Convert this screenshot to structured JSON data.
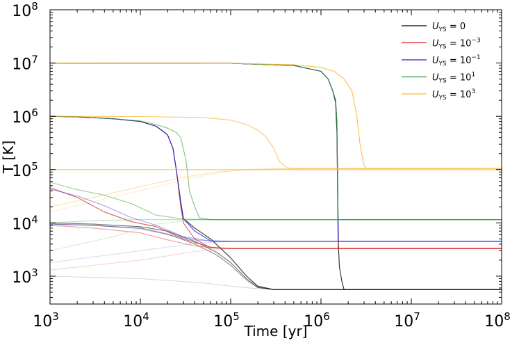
{
  "chart_data": {
    "type": "line",
    "xlabel": "Time [yr]",
    "ylabel": "T [K]",
    "x_scale": "log",
    "y_scale": "log",
    "xlim": [
      1000,
      100000000
    ],
    "ylim": [
      300,
      100000000
    ],
    "x_ticks": [
      1000,
      10000,
      100000,
      1000000,
      10000000,
      100000000
    ],
    "x_tick_labels": [
      {
        "base": "10",
        "exp": "3"
      },
      {
        "base": "10",
        "exp": "4"
      },
      {
        "base": "10",
        "exp": "5"
      },
      {
        "base": "10",
        "exp": "6"
      },
      {
        "base": "10",
        "exp": "7"
      },
      {
        "base": "10",
        "exp": "8"
      }
    ],
    "y_ticks": [
      1000,
      10000,
      100000,
      1000000,
      10000000,
      100000000
    ],
    "y_tick_labels": [
      {
        "base": "10",
        "exp": "3"
      },
      {
        "base": "10",
        "exp": "4"
      },
      {
        "base": "10",
        "exp": "5"
      },
      {
        "base": "10",
        "exp": "6"
      },
      {
        "base": "10",
        "exp": "7"
      },
      {
        "base": "10",
        "exp": "8"
      }
    ],
    "legend_position": "top-right",
    "legend": [
      {
        "key": "u0",
        "var": "U",
        "sub": "YS",
        "eq": " = ",
        "val": "0",
        "exp": "",
        "color": "#000000"
      },
      {
        "key": "um3",
        "var": "U",
        "sub": "YS",
        "eq": " = ",
        "val": "10",
        "exp": "−3",
        "color": "#d62728"
      },
      {
        "key": "um1",
        "var": "U",
        "sub": "YS",
        "eq": " = ",
        "val": "10",
        "exp": "−1",
        "color": "#1f1fd6"
      },
      {
        "key": "u1",
        "var": "U",
        "sub": "YS",
        "eq": " = ",
        "val": "10",
        "exp": "1",
        "color": "#2ca02c"
      },
      {
        "key": "u3",
        "var": "U",
        "sub": "YS",
        "eq": " = ",
        "val": "10",
        "exp": "3",
        "color": "#ffb732"
      }
    ],
    "series": [
      {
        "group": "u0",
        "opacity": 0.85,
        "points": [
          [
            1000,
            10000000
          ],
          [
            100000,
            9900000
          ],
          [
            500000,
            9000000
          ],
          [
            1000000,
            7000000
          ],
          [
            1200000,
            5000000
          ],
          [
            1350000,
            3000000
          ],
          [
            1450000,
            1800000
          ],
          [
            1500000,
            500000
          ],
          [
            1550000,
            5000
          ],
          [
            1600000,
            1500
          ],
          [
            1700000,
            800
          ],
          [
            1800000,
            560
          ],
          [
            100000000,
            560
          ]
        ]
      },
      {
        "group": "um3",
        "opacity": 0.85,
        "points": [
          [
            1000,
            10000000
          ],
          [
            100000,
            9900000
          ],
          [
            500000,
            9000000
          ],
          [
            1000000,
            7000000
          ],
          [
            1200000,
            5000000
          ],
          [
            1350000,
            3000000
          ],
          [
            1450000,
            2000000
          ],
          [
            1500000,
            800000
          ],
          [
            1550000,
            3300
          ],
          [
            100000000,
            3300
          ]
        ]
      },
      {
        "group": "um1",
        "opacity": 0.85,
        "points": [
          [
            1000,
            10000000
          ],
          [
            100000,
            9900000
          ],
          [
            500000,
            9000000
          ],
          [
            1000000,
            7000000
          ],
          [
            1200000,
            5000000
          ],
          [
            1350000,
            3000000
          ],
          [
            1450000,
            2000000
          ],
          [
            1500000,
            800000
          ],
          [
            1560000,
            4500
          ],
          [
            100000000,
            4500
          ]
        ]
      },
      {
        "group": "u1",
        "opacity": 0.85,
        "points": [
          [
            1000,
            10000000
          ],
          [
            100000,
            9900000
          ],
          [
            500000,
            9000000
          ],
          [
            1000000,
            7000000
          ],
          [
            1200000,
            5000000
          ],
          [
            1350000,
            3000000
          ],
          [
            1450000,
            2000000
          ],
          [
            1500000,
            800000
          ],
          [
            1550000,
            11500
          ],
          [
            100000000,
            11500
          ]
        ]
      },
      {
        "group": "u3",
        "opacity": 0.9,
        "points": [
          [
            1000,
            10000000
          ],
          [
            100000,
            9900000
          ],
          [
            500000,
            9300000
          ],
          [
            1000000,
            8300000
          ],
          [
            1400000,
            7000000
          ],
          [
            1800000,
            5000000
          ],
          [
            2200000,
            3000000
          ],
          [
            2500000,
            1000000
          ],
          [
            2700000,
            300000
          ],
          [
            3000000,
            120000
          ],
          [
            3200000,
            105000
          ],
          [
            100000000,
            105000
          ]
        ]
      },
      {
        "group": "u0",
        "opacity": 0.8,
        "points": [
          [
            1000,
            1000000
          ],
          [
            2000,
            980000
          ],
          [
            5000,
            900000
          ],
          [
            10000,
            800000
          ],
          [
            15000,
            650000
          ],
          [
            20000,
            450000
          ],
          [
            23000,
            250000
          ],
          [
            25000,
            100000
          ],
          [
            28000,
            25000
          ],
          [
            30000,
            12000
          ],
          [
            40000,
            8000
          ],
          [
            60000,
            5000
          ],
          [
            100000,
            2200
          ],
          [
            150000,
            1000
          ],
          [
            200000,
            650
          ],
          [
            300000,
            560
          ],
          [
            100000000,
            560
          ]
        ]
      },
      {
        "group": "um3",
        "opacity": 0.75,
        "points": [
          [
            1000,
            1000000
          ],
          [
            2000,
            980000
          ],
          [
            5000,
            900000
          ],
          [
            10000,
            800000
          ],
          [
            15000,
            650000
          ],
          [
            20000,
            450000
          ],
          [
            23000,
            250000
          ],
          [
            25000,
            100000
          ],
          [
            28000,
            20000
          ],
          [
            30000,
            10000
          ],
          [
            40000,
            5000
          ],
          [
            60000,
            3400
          ],
          [
            100000,
            3300
          ],
          [
            100000000,
            3300
          ]
        ]
      },
      {
        "group": "um1",
        "opacity": 0.85,
        "points": [
          [
            1000,
            1000000
          ],
          [
            2000,
            980000
          ],
          [
            5000,
            900000
          ],
          [
            10000,
            800000
          ],
          [
            15000,
            650000
          ],
          [
            20000,
            450000
          ],
          [
            23000,
            250000
          ],
          [
            25000,
            100000
          ],
          [
            28000,
            25000
          ],
          [
            30000,
            12000
          ],
          [
            40000,
            7000
          ],
          [
            60000,
            4600
          ],
          [
            100000,
            4500
          ],
          [
            100000000,
            4500
          ]
        ]
      },
      {
        "group": "u1",
        "opacity": 0.6,
        "points": [
          [
            1000,
            1000000
          ],
          [
            2000,
            980000
          ],
          [
            5000,
            900000
          ],
          [
            10000,
            820000
          ],
          [
            15000,
            700000
          ],
          [
            20000,
            600000
          ],
          [
            25000,
            500000
          ],
          [
            28000,
            400000
          ],
          [
            32000,
            150000
          ],
          [
            35000,
            40000
          ],
          [
            40000,
            20000
          ],
          [
            45000,
            12500
          ],
          [
            60000,
            11500
          ],
          [
            100000000,
            11500
          ]
        ]
      },
      {
        "group": "u3",
        "opacity": 0.75,
        "points": [
          [
            1000,
            1000000
          ],
          [
            10000,
            990000
          ],
          [
            50000,
            950000
          ],
          [
            100000,
            850000
          ],
          [
            150000,
            700000
          ],
          [
            200000,
            550000
          ],
          [
            250000,
            400000
          ],
          [
            300000,
            250000
          ],
          [
            350000,
            140000
          ],
          [
            420000,
            108000
          ],
          [
            500000,
            105000
          ],
          [
            100000000,
            105000
          ]
        ]
      },
      {
        "group": "u3",
        "opacity": 0.85,
        "points": [
          [
            1000,
            100000
          ],
          [
            100000000,
            100000
          ]
        ]
      },
      {
        "group": "u0",
        "opacity": 0.55,
        "points": [
          [
            1000,
            10000
          ],
          [
            3000,
            9500
          ],
          [
            10000,
            8500
          ],
          [
            20000,
            7000
          ],
          [
            40000,
            4500
          ],
          [
            70000,
            2800
          ],
          [
            100000,
            1800
          ],
          [
            150000,
            900
          ],
          [
            200000,
            620
          ],
          [
            300000,
            560
          ],
          [
            100000000,
            560
          ]
        ]
      },
      {
        "group": "u0",
        "opacity": 0.45,
        "points": [
          [
            1000,
            9500
          ],
          [
            3000,
            9000
          ],
          [
            10000,
            8000
          ],
          [
            20000,
            6200
          ],
          [
            40000,
            4000
          ],
          [
            70000,
            2500
          ],
          [
            100000,
            1600
          ],
          [
            150000,
            850
          ],
          [
            200000,
            610
          ],
          [
            300000,
            560
          ],
          [
            100000000,
            560
          ]
        ]
      },
      {
        "group": "u0",
        "opacity": 0.15,
        "points": [
          [
            1000,
            1000
          ],
          [
            10000,
            900
          ],
          [
            50000,
            750
          ],
          [
            100000,
            650
          ],
          [
            200000,
            580
          ],
          [
            400000,
            560
          ],
          [
            100000000,
            560
          ]
        ]
      },
      {
        "group": "um3",
        "opacity": 0.75,
        "points": [
          [
            1000,
            46000
          ],
          [
            2000,
            30000
          ],
          [
            4000,
            16000
          ],
          [
            8000,
            10500
          ],
          [
            15000,
            8500
          ],
          [
            30000,
            5000
          ],
          [
            60000,
            3500
          ],
          [
            100000,
            3300
          ],
          [
            100000000,
            3300
          ]
        ]
      },
      {
        "group": "um3",
        "opacity": 0.45,
        "points": [
          [
            1000,
            9000
          ],
          [
            3000,
            8000
          ],
          [
            10000,
            6500
          ],
          [
            20000,
            4800
          ],
          [
            40000,
            3700
          ],
          [
            70000,
            3350
          ],
          [
            100000,
            3300
          ],
          [
            100000000,
            3300
          ]
        ]
      },
      {
        "group": "um3",
        "opacity": 0.2,
        "points": [
          [
            1000,
            1300
          ],
          [
            10000,
            2000
          ],
          [
            40000,
            2900
          ],
          [
            100000,
            3300
          ],
          [
            100000000,
            3300
          ]
        ]
      },
      {
        "group": "um1",
        "opacity": 0.4,
        "points": [
          [
            1000,
            43000
          ],
          [
            2000,
            32000
          ],
          [
            4000,
            21000
          ],
          [
            8000,
            12500
          ],
          [
            15000,
            9000
          ],
          [
            30000,
            5500
          ],
          [
            60000,
            4550
          ],
          [
            100000,
            4500
          ],
          [
            100000000,
            4500
          ]
        ]
      },
      {
        "group": "um1",
        "opacity": 0.3,
        "points": [
          [
            1000,
            9500
          ],
          [
            3000,
            9000
          ],
          [
            10000,
            7800
          ],
          [
            20000,
            6000
          ],
          [
            40000,
            4800
          ],
          [
            70000,
            4500
          ],
          [
            100000000,
            4500
          ]
        ]
      },
      {
        "group": "um1",
        "opacity": 0.15,
        "points": [
          [
            1000,
            1800
          ],
          [
            10000,
            3000
          ],
          [
            40000,
            4100
          ],
          [
            100000,
            4500
          ],
          [
            100000000,
            4500
          ]
        ]
      },
      {
        "group": "u1",
        "opacity": 0.5,
        "points": [
          [
            1000,
            58000
          ],
          [
            2000,
            42000
          ],
          [
            4000,
            33000
          ],
          [
            8000,
            23000
          ],
          [
            15000,
            14000
          ],
          [
            30000,
            11800
          ],
          [
            60000,
            11500
          ],
          [
            100000000,
            11500
          ]
        ]
      },
      {
        "group": "u1",
        "opacity": 0.35,
        "points": [
          [
            1000,
            10000
          ],
          [
            3000,
            11000
          ],
          [
            10000,
            11500
          ],
          [
            100000000,
            11500
          ]
        ]
      },
      {
        "group": "u1",
        "opacity": 0.2,
        "points": [
          [
            1000,
            3000
          ],
          [
            5000,
            5500
          ],
          [
            15000,
            9500
          ],
          [
            40000,
            11400
          ],
          [
            100000000,
            11500
          ]
        ]
      },
      {
        "group": "u3",
        "opacity": 0.4,
        "points": [
          [
            1000,
            20000
          ],
          [
            3000,
            30000
          ],
          [
            10000,
            48000
          ],
          [
            30000,
            72000
          ],
          [
            70000,
            90000
          ],
          [
            150000,
            100000
          ],
          [
            300000,
            104000
          ],
          [
            100000000,
            105000
          ]
        ]
      },
      {
        "group": "u3",
        "opacity": 0.25,
        "points": [
          [
            1000,
            16000
          ],
          [
            3000,
            25000
          ],
          [
            10000,
            40000
          ],
          [
            30000,
            65000
          ],
          [
            100000,
            95000
          ],
          [
            300000,
            103000
          ],
          [
            100000000,
            105000
          ]
        ]
      }
    ]
  }
}
